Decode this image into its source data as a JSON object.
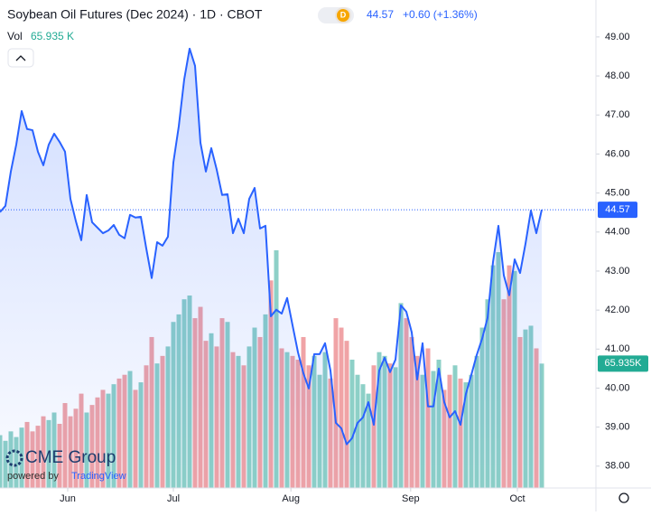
{
  "chart_data": {
    "type": "line",
    "title": "Soybean Oil Futures (Dec 2024) · 1D · CBOT",
    "interval_badge": "D",
    "last_price": "44.57",
    "change": "+0.60 (+1.36%)",
    "volume_label": "Vol",
    "volume_text": "65.935 K",
    "price_tag": "44.57",
    "volume_tag": "65.935K",
    "logo": "CME Group",
    "powered_by": "powered by",
    "powered_brand": "TradingView",
    "color": "#2962ff",
    "up_color": "#8dd0c7",
    "down_color": "#f0a3a6",
    "values": [
      44.51,
      44.67,
      45.55,
      46.24,
      47.1,
      46.64,
      46.61,
      46.06,
      45.71,
      46.24,
      46.52,
      46.31,
      46.06,
      44.85,
      44.28,
      43.79,
      44.95,
      44.25,
      44.11,
      43.97,
      44.04,
      44.18,
      43.93,
      43.84,
      44.44,
      44.37,
      44.39,
      43.58,
      42.82,
      43.74,
      43.65,
      43.88,
      45.78,
      46.71,
      47.91,
      48.7,
      48.26,
      46.29,
      45.55,
      46.15,
      45.6,
      44.95,
      44.97,
      43.97,
      44.34,
      43.97,
      44.85,
      45.13,
      44.09,
      44.16,
      41.84,
      42.01,
      41.91,
      42.31,
      41.61,
      40.92,
      40.38,
      39.99,
      40.87,
      40.87,
      41.15,
      40.45,
      39.11,
      38.97,
      38.56,
      38.72,
      39.11,
      39.25,
      39.64,
      39.06,
      40.45,
      40.78,
      40.41,
      40.73,
      42.12,
      41.96,
      41.43,
      40.22,
      41.15,
      39.53,
      39.53,
      40.5,
      39.64,
      39.25,
      39.41,
      39.06,
      39.85,
      40.34,
      40.85,
      41.27,
      41.8,
      43.23,
      44.16,
      42.89,
      42.38,
      43.3,
      42.95,
      43.7,
      44.55,
      43.97,
      44.57
    ],
    "volume": [
      28,
      25,
      30,
      27,
      32,
      35,
      30,
      33,
      38,
      36,
      40,
      34,
      45,
      38,
      42,
      50,
      40,
      44,
      48,
      52,
      50,
      55,
      58,
      60,
      62,
      52,
      56,
      65,
      80,
      66,
      70,
      75,
      88,
      92,
      100,
      102,
      90,
      96,
      78,
      82,
      75,
      90,
      88,
      72,
      70,
      65,
      75,
      85,
      80,
      92,
      110,
      126,
      74,
      72,
      70,
      68,
      80,
      65,
      70,
      60,
      72,
      58,
      90,
      85,
      78,
      68,
      60,
      55,
      50,
      65,
      72,
      70,
      66,
      64,
      98,
      90,
      80,
      70,
      60,
      74,
      62,
      68,
      52,
      60,
      65,
      58,
      56,
      60,
      70,
      85,
      100,
      118,
      125,
      100,
      118,
      115,
      80,
      84,
      86,
      74,
      65.935
    ],
    "vol_ylim": [
      0,
      250
    ],
    "xlim": [
      0,
      110
    ],
    "xticks": [
      {
        "value": 12.5,
        "label": "Jun"
      },
      {
        "value": 32,
        "label": "Jul"
      },
      {
        "value": 53.7,
        "label": "Aug"
      },
      {
        "value": 75.8,
        "label": "Sep"
      },
      {
        "value": 95.5,
        "label": "Oct"
      }
    ],
    "ylim": [
      37.44,
      49.53
    ],
    "yticks": [
      {
        "value": 38,
        "label": "38.00"
      },
      {
        "value": 39,
        "label": "39.00"
      },
      {
        "value": 40,
        "label": "40.00"
      },
      {
        "value": 41,
        "label": "41.00"
      },
      {
        "value": 42,
        "label": "42.00"
      },
      {
        "value": 43,
        "label": "43.00"
      },
      {
        "value": 44,
        "label": "44.00"
      },
      {
        "value": 45,
        "label": "45.00"
      },
      {
        "value": 46,
        "label": "46.00"
      },
      {
        "value": 47,
        "label": "47.00"
      },
      {
        "value": 48,
        "label": "48.00"
      },
      {
        "value": 49,
        "label": "49.00"
      }
    ]
  }
}
